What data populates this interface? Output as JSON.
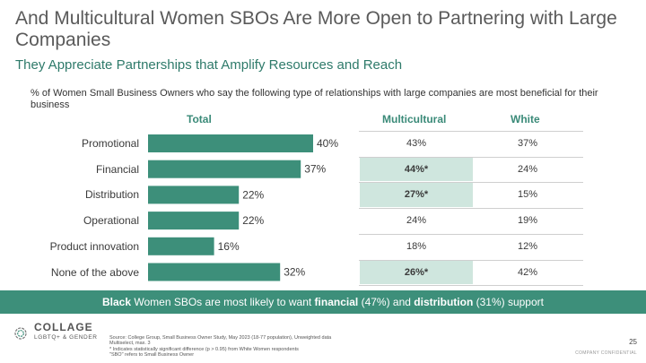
{
  "title": "And Multicultural Women SBOs Are More Open to Partnering with Large Companies",
  "subtitle": "They Appreciate Partnerships that Amplify Resources and Reach",
  "question": "% of Women Small Business Owners who say the following type of relationships with large companies are most beneficial for their business",
  "headers": {
    "total": "Total",
    "multicultural": "Multicultural",
    "white": "White"
  },
  "rows": [
    {
      "label": "Promotional",
      "multicultural": "43%",
      "white": "37%",
      "significant": false
    },
    {
      "label": "Financial",
      "multicultural": "44%*",
      "white": "24%",
      "significant": true
    },
    {
      "label": "Distribution",
      "multicultural": "27%*",
      "white": "15%",
      "significant": true
    },
    {
      "label": "Operational",
      "multicultural": "24%",
      "white": "19%",
      "significant": false
    },
    {
      "label": "Product innovation",
      "multicultural": "18%",
      "white": "12%",
      "significant": false
    },
    {
      "label": "None of the above",
      "multicultural": "26%*",
      "white": "42%",
      "significant": true
    }
  ],
  "chart_data": {
    "type": "bar",
    "orientation": "horizontal",
    "categories": [
      "Promotional",
      "Financial",
      "Distribution",
      "Operational",
      "Product innovation",
      "None of the above"
    ],
    "series": [
      {
        "name": "Total",
        "values": [
          40,
          37,
          22,
          22,
          16,
          32
        ],
        "labels": [
          "40%",
          "37%",
          "22%",
          "22%",
          "16%",
          "32%"
        ],
        "color": "#3d8f7a"
      }
    ],
    "xlim": [
      0,
      100
    ]
  },
  "banner": {
    "p1": "Black",
    "p2": " Women SBOs are most likely to want ",
    "p3": "financial",
    "p4": " (47%) and ",
    "p5": "distribution",
    "p6": " (31%) support"
  },
  "logo": {
    "word": "COLLAGE",
    "sub": "LGBTQ+ & GENDER"
  },
  "source": [
    "Source: College Group, Small Business Owner Study, May 2023 (18-77 population), Unweighted data",
    "Multiselect, max. 3",
    "* Indicates statistically significant difference (p > 0.95) from White Women respondents",
    "\"SBO\" refers to Small Business Owner"
  ],
  "page_number": "25",
  "confidential": "COMPANY CONFIDENTIAL",
  "colors": {
    "accent": "#3d8f7a",
    "highlight": "#cfe6de",
    "subtitle": "#2e7a6a"
  }
}
